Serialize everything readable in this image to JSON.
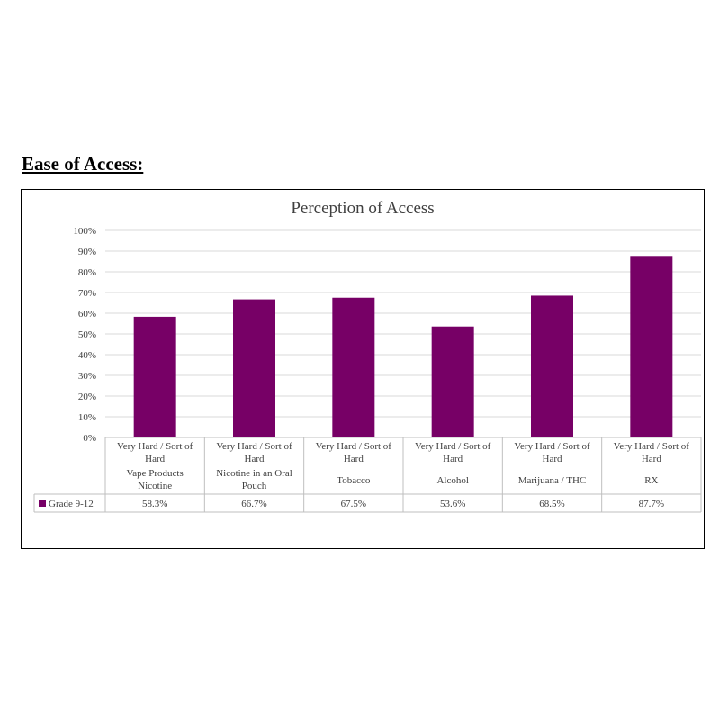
{
  "page": {
    "heading": "Ease of Access:"
  },
  "colors": {
    "bar": "#770066",
    "grid": "#d9d9d9",
    "table_border": "#bfbfbf",
    "text": "#404040"
  },
  "chart_data": {
    "type": "bar",
    "title": "Perception of Access",
    "xlabel": "",
    "ylabel": "",
    "ylim": [
      0,
      100
    ],
    "y_ticks": [
      "0%",
      "10%",
      "20%",
      "30%",
      "40%",
      "50%",
      "60%",
      "70%",
      "80%",
      "90%",
      "100%"
    ],
    "grid": true,
    "legend_position": "data-table",
    "categories": [
      {
        "response": [
          "Very Hard / Sort of",
          "Hard"
        ],
        "substance": [
          "Vape Products",
          "Nicotine"
        ]
      },
      {
        "response": [
          "Very Hard / Sort of",
          "Hard"
        ],
        "substance": [
          "Nicotine in an Oral",
          "Pouch"
        ]
      },
      {
        "response": [
          "Very Hard / Sort of",
          "Hard"
        ],
        "substance": [
          "Tobacco"
        ]
      },
      {
        "response": [
          "Very Hard / Sort of",
          "Hard"
        ],
        "substance": [
          "Alcohol"
        ]
      },
      {
        "response": [
          "Very Hard / Sort of",
          "Hard"
        ],
        "substance": [
          "Marijuana / THC"
        ]
      },
      {
        "response": [
          "Very Hard / Sort of",
          "Hard"
        ],
        "substance": [
          "RX"
        ]
      }
    ],
    "series": [
      {
        "name": "Grade  9-12",
        "values": [
          58.3,
          66.7,
          67.5,
          53.6,
          68.5,
          87.7
        ],
        "labels": [
          "58.3%",
          "66.7%",
          "67.5%",
          "53.6%",
          "68.5%",
          "87.7%"
        ]
      }
    ]
  }
}
